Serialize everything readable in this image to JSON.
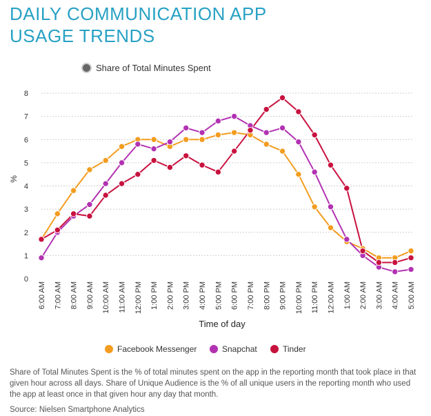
{
  "header": {
    "title_line1": "DAILY COMMUNICATION APP",
    "title_line2": "USAGE TRENDS"
  },
  "toggle": {
    "label": "Share of Total Minutes Spent"
  },
  "chart_data": {
    "type": "line",
    "title": "DAILY COMMUNICATION APP USAGE TRENDS",
    "xlabel": "Time of day",
    "ylabel": "%",
    "ylim": [
      0,
      8
    ],
    "yticks": [
      0,
      1,
      2,
      3,
      4,
      5,
      6,
      7,
      8
    ],
    "grid": true,
    "legend_position": "bottom",
    "categories": [
      "6:00 AM",
      "7:00 AM",
      "8:00 AM",
      "9:00 AM",
      "10:00 AM",
      "11:00 AM",
      "12:00 PM",
      "1:00 PM",
      "2:00 PM",
      "3:00 PM",
      "4:00 PM",
      "5:00 PM",
      "6:00 PM",
      "7:00 PM",
      "8:00 PM",
      "9:00 PM",
      "10:00 PM",
      "11:00 PM",
      "12:00 AM",
      "1:00 AM",
      "2:00 AM",
      "3:00 AM",
      "4:00 AM",
      "5:00 AM"
    ],
    "series": [
      {
        "name": "Facebook Messenger",
        "color": "#f39c1f",
        "values": [
          1.7,
          2.8,
          3.8,
          4.7,
          5.1,
          5.7,
          6.0,
          6.0,
          5.7,
          6.0,
          6.0,
          6.2,
          6.3,
          6.2,
          5.8,
          5.5,
          4.5,
          3.1,
          2.2,
          1.6,
          1.3,
          0.9,
          0.9,
          1.2
        ]
      },
      {
        "name": "Snapchat",
        "color": "#b232b2",
        "values": [
          0.9,
          2.0,
          2.7,
          3.2,
          4.1,
          5.0,
          5.8,
          5.6,
          5.9,
          6.5,
          6.3,
          6.8,
          7.0,
          6.6,
          6.3,
          6.5,
          5.9,
          4.6,
          3.1,
          1.7,
          1.0,
          0.5,
          0.3,
          0.4
        ]
      },
      {
        "name": "Tinder",
        "color": "#c8123e",
        "values": [
          1.7,
          2.1,
          2.8,
          2.7,
          3.6,
          4.1,
          4.5,
          5.1,
          4.8,
          5.3,
          4.9,
          4.6,
          5.5,
          6.4,
          7.3,
          7.8,
          7.2,
          6.2,
          4.9,
          3.9,
          1.2,
          0.7,
          0.7,
          0.9
        ]
      }
    ]
  },
  "footer": {
    "note": "Share of Total Minutes Spent is the % of total minutes spent on the app in the reporting month that took place in that given hour across all days. Share of Unique Audience is the % of all unique users in the reporting month who used the app at least once in that given hour any day that month.",
    "source": "Source: Nielsen Smartphone Analytics"
  }
}
